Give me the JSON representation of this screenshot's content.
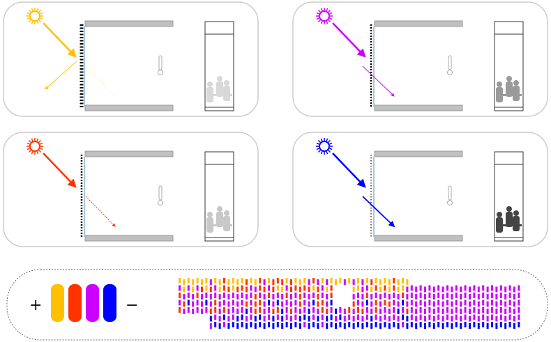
{
  "legend": {
    "plus": "+",
    "minus": "−"
  },
  "colors": {
    "yellow": "#ffc000",
    "red": "#ff3300",
    "magenta": "#cc00ff",
    "blue": "#0000ff"
  },
  "panels": [
    {
      "name": "yellow-scenario",
      "color": "#ffc000",
      "shade": "dense",
      "occupancy_tone": "#d8d8d8"
    },
    {
      "name": "magenta-scenario",
      "color": "#cc00ff",
      "shade": "medium",
      "occupancy_tone": "#9a9a9a"
    },
    {
      "name": "red-scenario",
      "color": "#ff3300",
      "shade": "medium",
      "occupancy_tone": "#c8c8c8"
    },
    {
      "name": "blue-scenario",
      "color": "#0000ff",
      "shade": "sparse",
      "occupancy_tone": "#444444"
    }
  ]
}
